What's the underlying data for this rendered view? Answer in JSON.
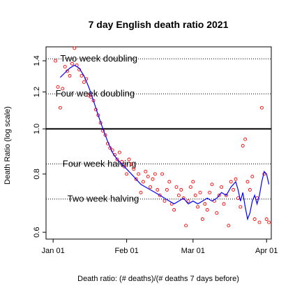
{
  "chart_data": {
    "type": "scatter",
    "title": "7 day English death ratio 2021",
    "xlabel": "Death ratio: (# deaths)/(# deaths 7 days before)",
    "ylabel": "Death Ratio (log scale)",
    "y_scale": "log",
    "grid": false,
    "legend": "none",
    "xlim": [
      "2020-12-29",
      "2021-04-03"
    ],
    "ylim": [
      0.58,
      1.5
    ],
    "x_ticks": [
      {
        "date": "2021-01-01",
        "label": "Jan 01"
      },
      {
        "date": "2021-02-01",
        "label": "Feb 01"
      },
      {
        "date": "2021-03-01",
        "label": "Mar 01"
      },
      {
        "date": "2021-04-01",
        "label": "Apr 01"
      }
    ],
    "y_ticks": [
      {
        "value": 0.6,
        "label": "0.6"
      },
      {
        "value": 0.8,
        "label": "0.8"
      },
      {
        "value": 1.0,
        "label": "1.0"
      },
      {
        "value": 1.2,
        "label": "1.2"
      },
      {
        "value": 1.4,
        "label": "1.4"
      }
    ],
    "reference_lines": [
      {
        "label": "Two week doubling",
        "y": 1.414,
        "style": "dotted",
        "label_date": "2021-01-04"
      },
      {
        "label": "Four week doubling",
        "y": 1.189,
        "style": "dotted",
        "label_date": "2021-01-02"
      },
      {
        "label": "",
        "y": 1.0,
        "style": "solid"
      },
      {
        "label": "Four week halving",
        "y": 0.841,
        "style": "dotted",
        "label_date": "2021-01-05"
      },
      {
        "label": "Two week halving",
        "y": 0.707,
        "style": "dotted",
        "label_date": "2021-01-07"
      }
    ],
    "colors": {
      "points": "#ff0000",
      "trend": "#0000ff",
      "reference": "#000000"
    },
    "series": [
      {
        "type": "scatter",
        "points": [
          [
            "2021-01-02",
            1.4
          ],
          [
            "2021-01-03",
            1.23
          ],
          [
            "2021-01-04",
            1.11
          ],
          [
            "2021-01-05",
            1.22
          ],
          [
            "2021-01-06",
            1.36
          ],
          [
            "2021-01-07",
            1.33
          ],
          [
            "2021-01-08",
            1.3
          ],
          [
            "2021-01-09",
            1.38
          ],
          [
            "2021-01-10",
            1.49
          ],
          [
            "2021-01-11",
            1.37
          ],
          [
            "2021-01-12",
            1.34
          ],
          [
            "2021-01-13",
            1.3
          ],
          [
            "2021-01-14",
            1.26
          ],
          [
            "2021-01-15",
            1.28
          ],
          [
            "2021-01-16",
            1.18
          ],
          [
            "2021-01-17",
            1.17
          ],
          [
            "2021-01-18",
            1.15
          ],
          [
            "2021-01-19",
            1.1
          ],
          [
            "2021-01-20",
            1.07
          ],
          [
            "2021-01-21",
            1.03
          ],
          [
            "2021-01-22",
            0.99
          ],
          [
            "2021-01-23",
            0.97
          ],
          [
            "2021-01-24",
            0.93
          ],
          [
            "2021-01-25",
            0.91
          ],
          [
            "2021-01-26",
            0.9
          ],
          [
            "2021-01-27",
            0.88
          ],
          [
            "2021-01-28",
            0.86
          ],
          [
            "2021-01-29",
            0.89
          ],
          [
            "2021-01-30",
            0.85
          ],
          [
            "2021-01-31",
            0.83
          ],
          [
            "2021-02-01",
            0.8
          ],
          [
            "2021-02-02",
            0.86
          ],
          [
            "2021-02-03",
            0.84
          ],
          [
            "2021-02-04",
            0.82
          ],
          [
            "2021-02-05",
            0.78
          ],
          [
            "2021-02-06",
            0.8
          ],
          [
            "2021-02-07",
            0.73
          ],
          [
            "2021-02-08",
            0.77
          ],
          [
            "2021-02-09",
            0.81
          ],
          [
            "2021-02-10",
            0.79
          ],
          [
            "2021-02-11",
            0.75
          ],
          [
            "2021-02-12",
            0.78
          ],
          [
            "2021-02-13",
            0.8
          ],
          [
            "2021-02-14",
            0.74
          ],
          [
            "2021-02-15",
            0.72
          ],
          [
            "2021-02-16",
            0.8
          ],
          [
            "2021-02-17",
            0.7
          ],
          [
            "2021-02-18",
            0.74
          ],
          [
            "2021-02-19",
            0.77
          ],
          [
            "2021-02-20",
            0.69
          ],
          [
            "2021-02-21",
            0.67
          ],
          [
            "2021-02-22",
            0.75
          ],
          [
            "2021-02-23",
            0.72
          ],
          [
            "2021-02-24",
            0.74
          ],
          [
            "2021-02-25",
            0.71
          ],
          [
            "2021-02-26",
            0.62
          ],
          [
            "2021-02-27",
            0.7
          ],
          [
            "2021-02-28",
            0.75
          ],
          [
            "2021-03-01",
            0.77
          ],
          [
            "2021-03-02",
            0.72
          ],
          [
            "2021-03-03",
            0.68
          ],
          [
            "2021-03-04",
            0.73
          ],
          [
            "2021-03-05",
            0.64
          ],
          [
            "2021-03-06",
            0.69
          ],
          [
            "2021-03-07",
            0.67
          ],
          [
            "2021-03-08",
            0.73
          ],
          [
            "2021-03-09",
            0.76
          ],
          [
            "2021-03-10",
            0.7
          ],
          [
            "2021-03-11",
            0.66
          ],
          [
            "2021-03-12",
            0.72
          ],
          [
            "2021-03-13",
            0.75
          ],
          [
            "2021-03-14",
            0.69
          ],
          [
            "2021-03-15",
            0.72
          ],
          [
            "2021-03-16",
            0.62
          ],
          [
            "2021-03-17",
            0.77
          ],
          [
            "2021-03-18",
            0.74
          ],
          [
            "2021-03-19",
            0.78
          ],
          [
            "2021-03-20",
            0.71
          ],
          [
            "2021-03-21",
            0.68
          ],
          [
            "2021-03-22",
            0.92
          ],
          [
            "2021-03-23",
            0.95
          ],
          [
            "2021-03-24",
            0.77
          ],
          [
            "2021-03-25",
            0.74
          ],
          [
            "2021-03-26",
            0.79
          ],
          [
            "2021-03-27",
            0.64
          ],
          [
            "2021-03-28",
            0.71
          ],
          [
            "2021-03-29",
            0.63
          ],
          [
            "2021-03-30",
            1.11
          ],
          [
            "2021-03-31",
            0.8
          ],
          [
            "2021-04-01",
            0.64
          ],
          [
            "2021-04-02",
            0.63
          ]
        ]
      },
      {
        "type": "line",
        "points": [
          [
            "2021-01-04",
            1.29
          ],
          [
            "2021-01-06",
            1.32
          ],
          [
            "2021-01-08",
            1.35
          ],
          [
            "2021-01-10",
            1.37
          ],
          [
            "2021-01-12",
            1.35
          ],
          [
            "2021-01-14",
            1.3
          ],
          [
            "2021-01-16",
            1.23
          ],
          [
            "2021-01-18",
            1.15
          ],
          [
            "2021-01-20",
            1.07
          ],
          [
            "2021-01-22",
            1.0
          ],
          [
            "2021-01-24",
            0.94
          ],
          [
            "2021-01-26",
            0.89
          ],
          [
            "2021-01-28",
            0.86
          ],
          [
            "2021-01-30",
            0.84
          ],
          [
            "2021-02-01",
            0.82
          ],
          [
            "2021-02-03",
            0.8
          ],
          [
            "2021-02-05",
            0.78
          ],
          [
            "2021-02-07",
            0.76
          ],
          [
            "2021-02-09",
            0.75
          ],
          [
            "2021-02-11",
            0.74
          ],
          [
            "2021-02-13",
            0.73
          ],
          [
            "2021-02-15",
            0.72
          ],
          [
            "2021-02-17",
            0.71
          ],
          [
            "2021-02-19",
            0.7
          ],
          [
            "2021-02-21",
            0.69
          ],
          [
            "2021-02-23",
            0.7
          ],
          [
            "2021-02-25",
            0.71
          ],
          [
            "2021-02-27",
            0.69
          ],
          [
            "2021-03-01",
            0.7
          ],
          [
            "2021-03-03",
            0.69
          ],
          [
            "2021-03-05",
            0.7
          ],
          [
            "2021-03-07",
            0.71
          ],
          [
            "2021-03-09",
            0.7
          ],
          [
            "2021-03-11",
            0.71
          ],
          [
            "2021-03-13",
            0.73
          ],
          [
            "2021-03-15",
            0.72
          ],
          [
            "2021-03-17",
            0.75
          ],
          [
            "2021-03-19",
            0.77
          ],
          [
            "2021-03-20",
            0.74
          ],
          [
            "2021-03-21",
            0.7
          ],
          [
            "2021-03-22",
            0.73
          ],
          [
            "2021-03-23",
            0.68
          ],
          [
            "2021-03-24",
            0.64
          ],
          [
            "2021-03-25",
            0.66
          ],
          [
            "2021-03-26",
            0.7
          ],
          [
            "2021-03-27",
            0.72
          ],
          [
            "2021-03-28",
            0.69
          ],
          [
            "2021-03-29",
            0.72
          ],
          [
            "2021-03-30",
            0.77
          ],
          [
            "2021-03-31",
            0.81
          ],
          [
            "2021-04-01",
            0.8
          ],
          [
            "2021-04-02",
            0.76
          ]
        ]
      }
    ]
  }
}
